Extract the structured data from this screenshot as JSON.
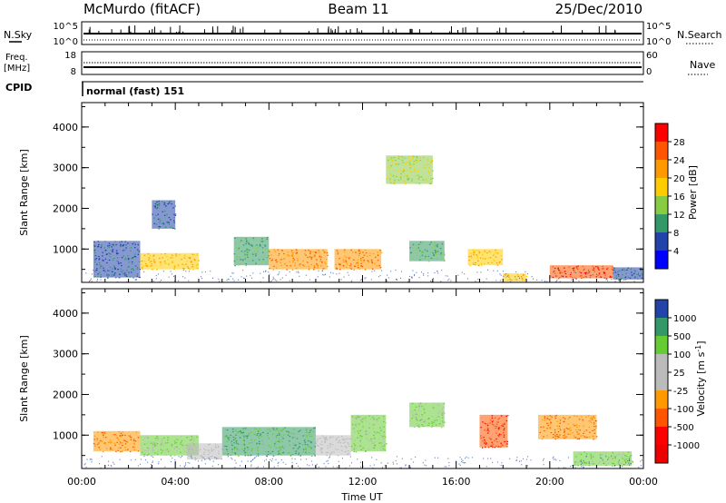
{
  "header": {
    "station": "McMurdo (fitACF)",
    "beam": "Beam 11",
    "date": "25/Dec/2010"
  },
  "noise_panel": {
    "left_label": "N.Sky",
    "right_label": "N.Search",
    "left_ticks": [
      "10^5",
      "10^0"
    ],
    "right_ticks": [
      "10^5",
      "10^0"
    ]
  },
  "freq_panel": {
    "left_label_1": "Freq.",
    "left_label_2": "[MHz]",
    "left_ticks": [
      "18",
      "8"
    ],
    "right_label": "Nave",
    "right_ticks": [
      "60",
      "0"
    ]
  },
  "cpid": {
    "label": "CPID",
    "value": "normal (fast) 151"
  },
  "x_axis": {
    "label": "Time UT",
    "ticks": [
      "00:00",
      "04:00",
      "08:00",
      "12:00",
      "16:00",
      "20:00",
      "00:00"
    ]
  },
  "y_axis": {
    "label": "Slant Range [km]",
    "ticks": [
      "1000",
      "2000",
      "3000",
      "4000"
    ]
  },
  "power_scale": {
    "label": "Power [dB]",
    "ticks": [
      "28",
      "24",
      "20",
      "16",
      "12",
      "8",
      "4"
    ],
    "colors": [
      "#ff0000",
      "#ff5500",
      "#ff9900",
      "#ffcc00",
      "#88cc44",
      "#339966",
      "#2244aa",
      "#0000ff"
    ]
  },
  "velocity_scale": {
    "label": "Velocity [m s",
    "label_sup": "-1",
    "label_end": "]",
    "ticks": [
      "1000",
      "500",
      "100",
      "25",
      "-25",
      "-100",
      "-500",
      "-1000"
    ],
    "colors": [
      "#2244aa",
      "#339966",
      "#66cc33",
      "#bbbbbb",
      "#bbbbbb",
      "#ff9900",
      "#ff5500",
      "#ff0000",
      "#ee0000"
    ]
  },
  "chart_data": [
    {
      "type": "heatmap",
      "quantity": "power",
      "x_range_hours": [
        0,
        24
      ],
      "y_range_km": [
        180,
        4600
      ],
      "echo_regions": [
        {
          "t0": 0.5,
          "t1": 2.5,
          "r0": 300,
          "r1": 1200,
          "power_db": 8
        },
        {
          "t0": 2.5,
          "t1": 5.0,
          "r0": 500,
          "r1": 900,
          "power_db": 20
        },
        {
          "t0": 3.0,
          "t1": 4.0,
          "r0": 1500,
          "r1": 2200,
          "power_db": 8
        },
        {
          "t0": 6.5,
          "t1": 8.0,
          "r0": 600,
          "r1": 1300,
          "power_db": 12
        },
        {
          "t0": 8.0,
          "t1": 10.5,
          "r0": 500,
          "r1": 1000,
          "power_db": 24
        },
        {
          "t0": 10.8,
          "t1": 12.8,
          "r0": 500,
          "r1": 1000,
          "power_db": 24
        },
        {
          "t0": 13.0,
          "t1": 15.0,
          "r0": 2600,
          "r1": 3300,
          "power_db": 16
        },
        {
          "t0": 14.0,
          "t1": 15.5,
          "r0": 700,
          "r1": 1200,
          "power_db": 12
        },
        {
          "t0": 16.5,
          "t1": 18.0,
          "r0": 600,
          "r1": 1000,
          "power_db": 20
        },
        {
          "t0": 18.0,
          "t1": 19.0,
          "r0": 200,
          "r1": 400,
          "power_db": 20
        },
        {
          "t0": 20.0,
          "t1": 22.7,
          "r0": 280,
          "r1": 600,
          "power_db": 28
        },
        {
          "t0": 22.7,
          "t1": 24.0,
          "r0": 250,
          "r1": 550,
          "power_db": 8
        }
      ]
    },
    {
      "type": "heatmap",
      "quantity": "velocity",
      "x_range_hours": [
        0,
        24
      ],
      "y_range_km": [
        180,
        4600
      ],
      "echo_regions": [
        {
          "t0": 0.5,
          "t1": 2.5,
          "r0": 600,
          "r1": 1100,
          "velocity": -100
        },
        {
          "t0": 2.5,
          "t1": 5.0,
          "r0": 500,
          "r1": 1000,
          "velocity": 100
        },
        {
          "t0": 4.5,
          "t1": 6.0,
          "r0": 400,
          "r1": 800,
          "velocity": 0
        },
        {
          "t0": 6.0,
          "t1": 10.0,
          "r0": 500,
          "r1": 1200,
          "velocity": 500
        },
        {
          "t0": 10.0,
          "t1": 11.5,
          "r0": 500,
          "r1": 1000,
          "velocity": 0
        },
        {
          "t0": 11.5,
          "t1": 13.0,
          "r0": 600,
          "r1": 1500,
          "velocity": 100
        },
        {
          "t0": 14.0,
          "t1": 15.5,
          "r0": 1200,
          "r1": 1800,
          "velocity": 100
        },
        {
          "t0": 17.0,
          "t1": 18.2,
          "r0": 700,
          "r1": 1500,
          "velocity": -500
        },
        {
          "t0": 19.5,
          "t1": 22.0,
          "r0": 900,
          "r1": 1500,
          "velocity": -100
        },
        {
          "t0": 21.0,
          "t1": 23.5,
          "r0": 250,
          "r1": 600,
          "velocity": 100
        }
      ]
    }
  ]
}
